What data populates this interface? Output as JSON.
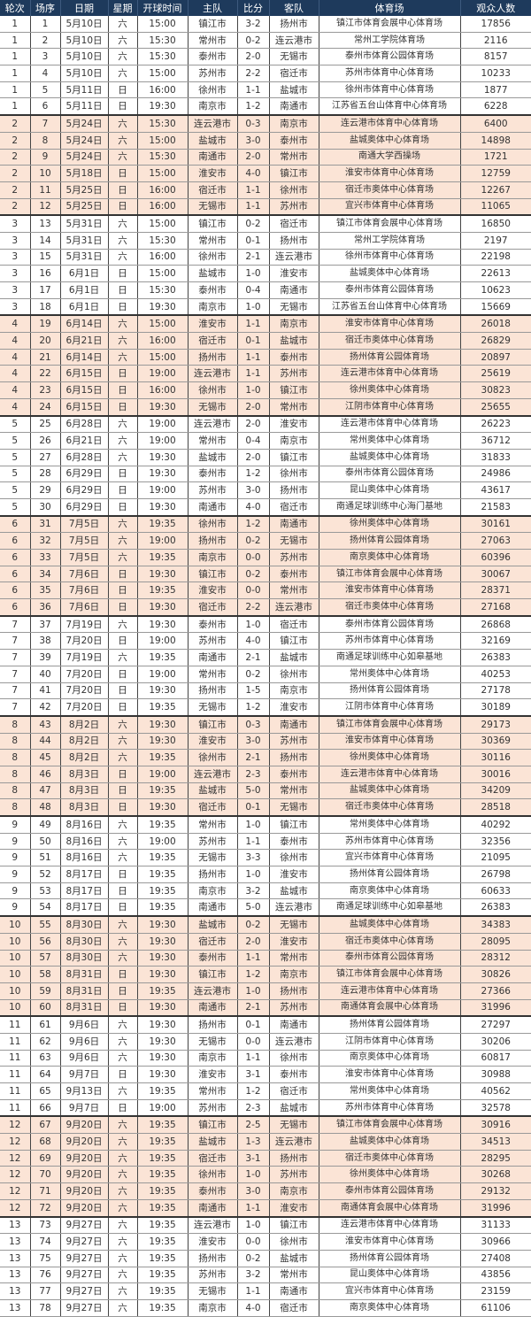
{
  "colors": {
    "header_bg": "#1e3a5c",
    "header_text": "#ffffff",
    "shade_row": "#fbe4d6"
  },
  "headers": [
    "轮次",
    "场序",
    "日期",
    "星期",
    "开球时间",
    "主队",
    "比分",
    "客队",
    "体育场",
    "观众人数"
  ],
  "rows": [
    [
      "1",
      "1",
      "5月10日",
      "六",
      "15:00",
      "镇江市",
      "3-2",
      "扬州市",
      "镇江市体育会展中心体育场",
      "17856"
    ],
    [
      "1",
      "2",
      "5月10日",
      "六",
      "15:30",
      "常州市",
      "0-2",
      "连云港市",
      "常州工学院体育场",
      "2116"
    ],
    [
      "1",
      "3",
      "5月10日",
      "六",
      "15:30",
      "泰州市",
      "2-0",
      "无锡市",
      "泰州市体育公园体育场",
      "8157"
    ],
    [
      "1",
      "4",
      "5月10日",
      "六",
      "15:00",
      "苏州市",
      "2-2",
      "宿迁市",
      "苏州市体育中心体育场",
      "10233"
    ],
    [
      "1",
      "5",
      "5月11日",
      "日",
      "16:00",
      "徐州市",
      "1-1",
      "盐城市",
      "徐州市体育中心体育场",
      "1877"
    ],
    [
      "1",
      "6",
      "5月11日",
      "日",
      "19:30",
      "南京市",
      "1-2",
      "南通市",
      "江苏省五台山体育中心体育场",
      "6228"
    ],
    [
      "2",
      "7",
      "5月24日",
      "六",
      "15:30",
      "连云港市",
      "0-3",
      "南京市",
      "连云港市体育中心体育场",
      "6400"
    ],
    [
      "2",
      "8",
      "5月24日",
      "六",
      "15:00",
      "盐城市",
      "3-0",
      "泰州市",
      "盐城奥体中心体育场",
      "14898"
    ],
    [
      "2",
      "9",
      "5月24日",
      "六",
      "15:30",
      "南通市",
      "2-0",
      "常州市",
      "南通大学西操场",
      "1721"
    ],
    [
      "2",
      "10",
      "5月18日",
      "日",
      "15:00",
      "淮安市",
      "4-0",
      "镇江市",
      "淮安市体育中心体育场",
      "12759"
    ],
    [
      "2",
      "11",
      "5月25日",
      "日",
      "16:00",
      "宿迁市",
      "1-1",
      "徐州市",
      "宿迁市奥体中心体育场",
      "12267"
    ],
    [
      "2",
      "12",
      "5月25日",
      "日",
      "16:00",
      "无锡市",
      "1-1",
      "苏州市",
      "宜兴市体育中心体育场",
      "11065"
    ],
    [
      "3",
      "13",
      "5月31日",
      "六",
      "15:00",
      "镇江市",
      "0-2",
      "宿迁市",
      "镇江市体育会展中心体育场",
      "16850"
    ],
    [
      "3",
      "14",
      "5月31日",
      "六",
      "15:30",
      "常州市",
      "0-1",
      "扬州市",
      "常州工学院体育场",
      "2197"
    ],
    [
      "3",
      "15",
      "5月31日",
      "六",
      "16:00",
      "徐州市",
      "2-1",
      "连云港市",
      "徐州市体育中心体育场",
      "22198"
    ],
    [
      "3",
      "16",
      "6月1日",
      "日",
      "15:00",
      "盐城市",
      "1-0",
      "淮安市",
      "盐城奥体中心体育场",
      "22613"
    ],
    [
      "3",
      "17",
      "6月1日",
      "日",
      "15:30",
      "泰州市",
      "0-4",
      "南通市",
      "泰州市体育公园体育场",
      "10623"
    ],
    [
      "3",
      "18",
      "6月1日",
      "日",
      "19:30",
      "南京市",
      "1-0",
      "无锡市",
      "江苏省五台山体育中心体育场",
      "15669"
    ],
    [
      "4",
      "19",
      "6月14日",
      "六",
      "15:00",
      "淮安市",
      "1-1",
      "南京市",
      "淮安市体育中心体育场",
      "26018"
    ],
    [
      "4",
      "20",
      "6月21日",
      "六",
      "16:00",
      "宿迁市",
      "0-1",
      "盐城市",
      "宿迁市奥体中心体育场",
      "26829"
    ],
    [
      "4",
      "21",
      "6月14日",
      "六",
      "15:00",
      "扬州市",
      "1-1",
      "泰州市",
      "扬州体育公园体育场",
      "20897"
    ],
    [
      "4",
      "22",
      "6月15日",
      "日",
      "19:00",
      "连云港市",
      "1-1",
      "苏州市",
      "连云港市体育中心体育场",
      "25619"
    ],
    [
      "4",
      "23",
      "6月15日",
      "日",
      "16:00",
      "徐州市",
      "1-0",
      "镇江市",
      "徐州奥体中心体育场",
      "30823"
    ],
    [
      "4",
      "24",
      "6月15日",
      "日",
      "19:30",
      "无锡市",
      "2-0",
      "常州市",
      "江阴市体育中心体育场",
      "25655"
    ],
    [
      "5",
      "25",
      "6月28日",
      "六",
      "19:00",
      "连云港市",
      "2-0",
      "淮安市",
      "连云港市体育中心体育场",
      "26223"
    ],
    [
      "5",
      "26",
      "6月21日",
      "六",
      "19:00",
      "常州市",
      "0-4",
      "南京市",
      "常州奥体中心体育场",
      "36712"
    ],
    [
      "5",
      "27",
      "6月28日",
      "六",
      "19:30",
      "盐城市",
      "2-0",
      "镇江市",
      "盐城奥体中心体育场",
      "31833"
    ],
    [
      "5",
      "28",
      "6月29日",
      "日",
      "19:30",
      "泰州市",
      "1-2",
      "徐州市",
      "泰州市体育公园体育场",
      "24986"
    ],
    [
      "5",
      "29",
      "6月29日",
      "日",
      "19:00",
      "苏州市",
      "3-0",
      "扬州市",
      "昆山奥体中心体育场",
      "43617"
    ],
    [
      "5",
      "30",
      "6月29日",
      "日",
      "19:30",
      "南通市",
      "4-0",
      "宿迁市",
      "南通足球训练中心海门基地",
      "21583"
    ],
    [
      "6",
      "31",
      "7月5日",
      "六",
      "19:35",
      "徐州市",
      "1-2",
      "南通市",
      "徐州奥体中心体育场",
      "30161"
    ],
    [
      "6",
      "32",
      "7月5日",
      "六",
      "19:00",
      "扬州市",
      "0-2",
      "无锡市",
      "扬州体育公园体育场",
      "27063"
    ],
    [
      "6",
      "33",
      "7月5日",
      "六",
      "19:35",
      "南京市",
      "0-0",
      "苏州市",
      "南京奥体中心体育场",
      "60396"
    ],
    [
      "6",
      "34",
      "7月6日",
      "日",
      "19:30",
      "镇江市",
      "0-2",
      "泰州市",
      "镇江市体育会展中心体育场",
      "30067"
    ],
    [
      "6",
      "35",
      "7月6日",
      "日",
      "19:35",
      "淮安市",
      "0-0",
      "常州市",
      "淮安市体育中心体育场",
      "28371"
    ],
    [
      "6",
      "36",
      "7月6日",
      "日",
      "19:30",
      "宿迁市",
      "2-2",
      "连云港市",
      "宿迁市奥体中心体育场",
      "27168"
    ],
    [
      "7",
      "37",
      "7月19日",
      "六",
      "19:30",
      "泰州市",
      "1-0",
      "宿迁市",
      "泰州市体育公园体育场",
      "26868"
    ],
    [
      "7",
      "38",
      "7月20日",
      "日",
      "19:00",
      "苏州市",
      "4-0",
      "镇江市",
      "苏州市体育中心体育场",
      "32169"
    ],
    [
      "7",
      "39",
      "7月19日",
      "六",
      "19:35",
      "南通市",
      "2-1",
      "盐城市",
      "南通足球训练中心如皋基地",
      "26383"
    ],
    [
      "7",
      "40",
      "7月20日",
      "日",
      "19:00",
      "常州市",
      "0-2",
      "徐州市",
      "常州奥体中心体育场",
      "40253"
    ],
    [
      "7",
      "41",
      "7月20日",
      "日",
      "19:30",
      "扬州市",
      "1-5",
      "南京市",
      "扬州体育公园体育场",
      "27178"
    ],
    [
      "7",
      "42",
      "7月20日",
      "日",
      "19:35",
      "无锡市",
      "1-2",
      "淮安市",
      "江阴市体育中心体育场",
      "30189"
    ],
    [
      "8",
      "43",
      "8月2日",
      "六",
      "19:30",
      "镇江市",
      "0-3",
      "南通市",
      "镇江市体育会展中心体育场",
      "29173"
    ],
    [
      "8",
      "44",
      "8月2日",
      "六",
      "19:30",
      "淮安市",
      "3-0",
      "苏州市",
      "淮安市体育中心体育场",
      "30369"
    ],
    [
      "8",
      "45",
      "8月2日",
      "六",
      "19:35",
      "徐州市",
      "2-1",
      "扬州市",
      "徐州奥体中心体育场",
      "30116"
    ],
    [
      "8",
      "46",
      "8月3日",
      "日",
      "19:00",
      "连云港市",
      "2-3",
      "泰州市",
      "连云港市体育中心体育场",
      "30016"
    ],
    [
      "8",
      "47",
      "8月3日",
      "日",
      "19:35",
      "盐城市",
      "5-0",
      "常州市",
      "盐城奥体中心体育场",
      "34209"
    ],
    [
      "8",
      "48",
      "8月3日",
      "日",
      "19:30",
      "宿迁市",
      "0-1",
      "无锡市",
      "宿迁市奥体中心体育场",
      "28518"
    ],
    [
      "9",
      "49",
      "8月16日",
      "六",
      "19:35",
      "常州市",
      "1-0",
      "镇江市",
      "常州奥体中心体育场",
      "40292"
    ],
    [
      "9",
      "50",
      "8月16日",
      "六",
      "19:00",
      "苏州市",
      "1-1",
      "泰州市",
      "苏州市体育中心体育场",
      "32356"
    ],
    [
      "9",
      "51",
      "8月16日",
      "六",
      "19:35",
      "无锡市",
      "3-3",
      "徐州市",
      "宜兴市体育中心体育场",
      "21095"
    ],
    [
      "9",
      "52",
      "8月17日",
      "日",
      "19:35",
      "扬州市",
      "1-0",
      "淮安市",
      "扬州体育公园体育场",
      "26798"
    ],
    [
      "9",
      "53",
      "8月17日",
      "日",
      "19:35",
      "南京市",
      "3-2",
      "盐城市",
      "南京奥体中心体育场",
      "60633"
    ],
    [
      "9",
      "54",
      "8月17日",
      "日",
      "19:35",
      "南通市",
      "5-0",
      "连云港市",
      "南通足球训练中心如皋基地",
      "26383"
    ],
    [
      "10",
      "55",
      "8月30日",
      "六",
      "19:30",
      "盐城市",
      "0-2",
      "无锡市",
      "盐城奥体中心体育场",
      "34383"
    ],
    [
      "10",
      "56",
      "8月30日",
      "六",
      "19:30",
      "宿迁市",
      "2-0",
      "淮安市",
      "宿迁市奥体中心体育场",
      "28095"
    ],
    [
      "10",
      "57",
      "8月30日",
      "六",
      "19:30",
      "泰州市",
      "1-1",
      "常州市",
      "泰州市体育公园体育场",
      "28312"
    ],
    [
      "10",
      "58",
      "8月31日",
      "日",
      "19:30",
      "镇江市",
      "1-2",
      "南京市",
      "镇江市体育会展中心体育场",
      "30826"
    ],
    [
      "10",
      "59",
      "8月31日",
      "日",
      "19:35",
      "连云港市",
      "1-0",
      "扬州市",
      "连云港市体育中心体育场",
      "27366"
    ],
    [
      "10",
      "60",
      "8月31日",
      "日",
      "19:30",
      "南通市",
      "2-1",
      "苏州市",
      "南通体育会展中心体育场",
      "31996"
    ],
    [
      "11",
      "61",
      "9月6日",
      "六",
      "19:30",
      "扬州市",
      "0-1",
      "南通市",
      "扬州体育公园体育场",
      "27297"
    ],
    [
      "11",
      "62",
      "9月6日",
      "六",
      "19:30",
      "无锡市",
      "0-0",
      "连云港市",
      "江阴市体育中心体育场",
      "30206"
    ],
    [
      "11",
      "63",
      "9月6日",
      "六",
      "19:30",
      "南京市",
      "1-1",
      "徐州市",
      "南京奥体中心体育场",
      "60817"
    ],
    [
      "11",
      "64",
      "9月7日",
      "日",
      "19:30",
      "淮安市",
      "3-1",
      "泰州市",
      "淮安市体育中心体育场",
      "30988"
    ],
    [
      "11",
      "65",
      "9月13日",
      "六",
      "19:35",
      "常州市",
      "1-2",
      "宿迁市",
      "常州奥体中心体育场",
      "40562"
    ],
    [
      "11",
      "66",
      "9月7日",
      "日",
      "19:00",
      "苏州市",
      "2-3",
      "盐城市",
      "苏州市体育中心体育场",
      "32578"
    ],
    [
      "12",
      "67",
      "9月20日",
      "六",
      "19:35",
      "镇江市",
      "2-5",
      "无锡市",
      "镇江市体育会展中心体育场",
      "30916"
    ],
    [
      "12",
      "68",
      "9月20日",
      "六",
      "19:35",
      "盐城市",
      "1-3",
      "连云港市",
      "盐城奥体中心体育场",
      "34513"
    ],
    [
      "12",
      "69",
      "9月20日",
      "六",
      "19:35",
      "宿迁市",
      "3-1",
      "扬州市",
      "宿迁市奥体中心体育场",
      "28295"
    ],
    [
      "12",
      "70",
      "9月20日",
      "六",
      "19:35",
      "徐州市",
      "1-0",
      "苏州市",
      "徐州奥体中心体育场",
      "30268"
    ],
    [
      "12",
      "71",
      "9月20日",
      "六",
      "19:35",
      "泰州市",
      "3-0",
      "南京市",
      "泰州市体育公园体育场",
      "29132"
    ],
    [
      "12",
      "72",
      "9月20日",
      "六",
      "19:35",
      "南通市",
      "1-1",
      "淮安市",
      "南通体育会展中心体育场",
      "31996"
    ],
    [
      "13",
      "73",
      "9月27日",
      "六",
      "19:35",
      "连云港市",
      "1-0",
      "镇江市",
      "连云港市体育中心体育场",
      "31133"
    ],
    [
      "13",
      "74",
      "9月27日",
      "六",
      "19:35",
      "淮安市",
      "0-0",
      "徐州市",
      "淮安市体育中心体育场",
      "30966"
    ],
    [
      "13",
      "75",
      "9月27日",
      "六",
      "19:35",
      "扬州市",
      "0-2",
      "盐城市",
      "扬州体育公园体育场",
      "27408"
    ],
    [
      "13",
      "76",
      "9月27日",
      "六",
      "19:35",
      "苏州市",
      "3-2",
      "常州市",
      "昆山奥体中心体育场",
      "43856"
    ],
    [
      "13",
      "77",
      "9月27日",
      "六",
      "19:35",
      "无锡市",
      "1-1",
      "南通市",
      "宜兴市体育中心体育场",
      "23159"
    ],
    [
      "13",
      "78",
      "9月27日",
      "六",
      "19:35",
      "南京市",
      "4-0",
      "宿迁市",
      "南京奥体中心体育场",
      "61106"
    ]
  ]
}
